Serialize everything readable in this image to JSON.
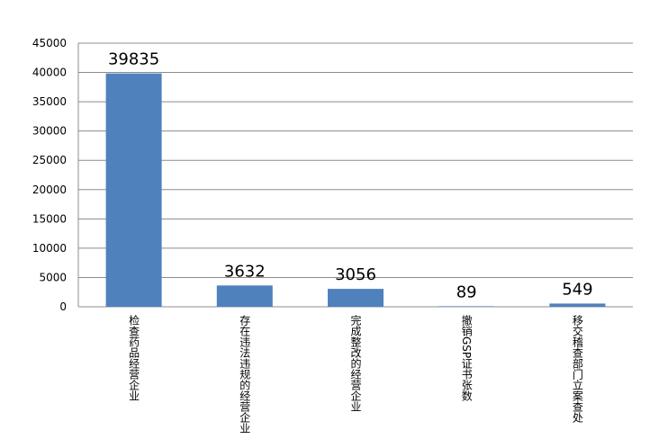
{
  "chart_data": {
    "type": "bar",
    "categories": [
      "检查药品经营企业",
      "存在违法违规的经营企业",
      "完成整改的经营企业",
      "撤销GSP证书张数",
      "移交稽查部门立案查处"
    ],
    "values": [
      39835,
      3632,
      3056,
      89,
      549
    ],
    "color": "#4f81bd",
    "ylim": [
      0,
      45000
    ],
    "yticks": [
      0,
      5000,
      10000,
      15000,
      20000,
      25000,
      30000,
      35000,
      40000,
      45000
    ],
    "grid": true
  }
}
